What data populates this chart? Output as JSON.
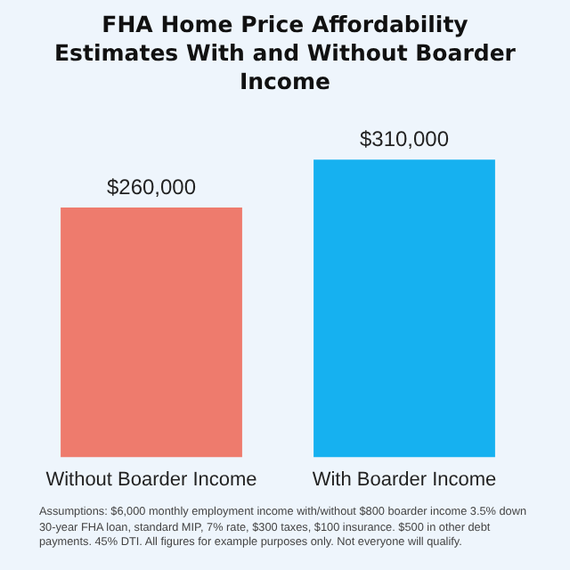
{
  "chart_data": {
    "type": "bar",
    "title": "FHA Home Price Affordability Estimates With and Without Boarder Income",
    "categories": [
      "Without Boarder Income",
      "With Boarder Income"
    ],
    "values": [
      260000,
      310000
    ],
    "colors": [
      "#ee7b6d",
      "#16b1f0"
    ],
    "value_labels": [
      "$260,000",
      "$310,000"
    ],
    "grid": false,
    "legend": false,
    "annotations": [
      "Assumptions: $6,000 monthly employment income with/without $800 boarder income 3.5% down 30-year FHA loan, standard MIP, 7% rate, $300 taxes, $100 insurance.  $500 in other debt payments. 45% DTI. All figures for example purposes only. Not everyone will qualify."
    ]
  }
}
